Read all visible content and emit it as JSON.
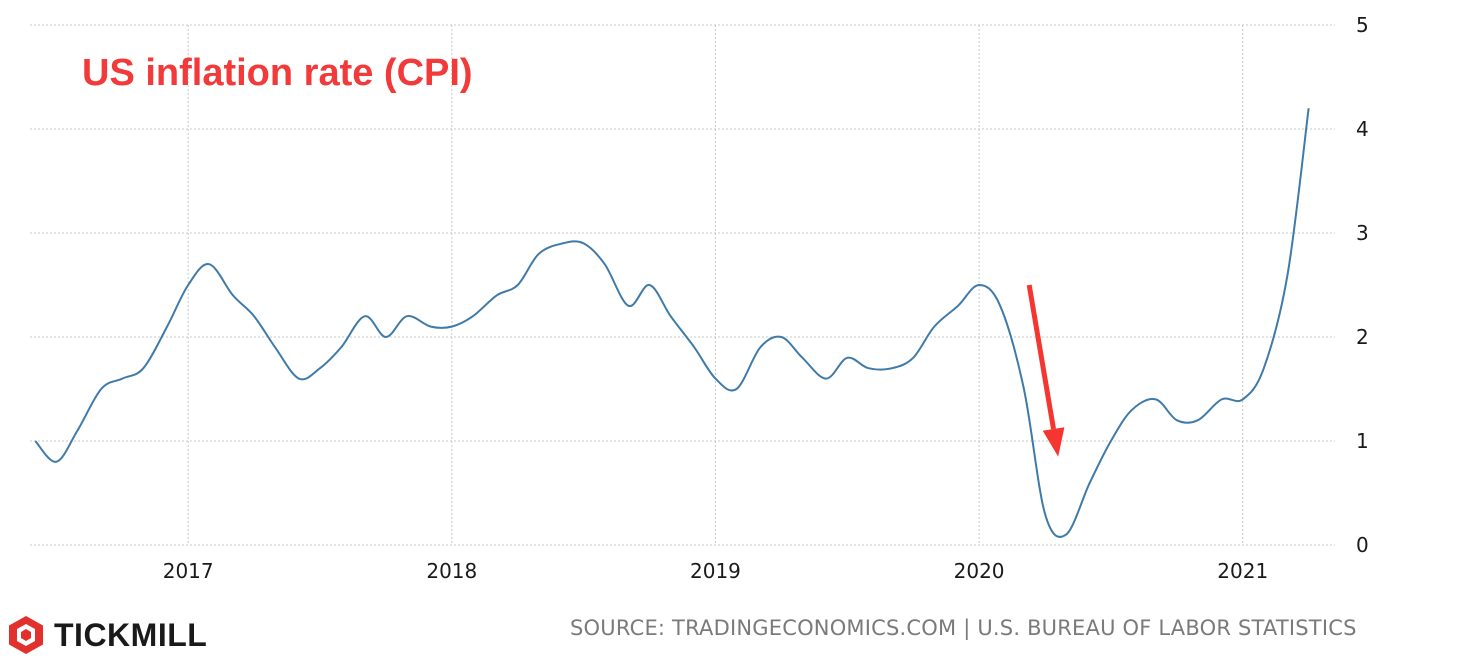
{
  "chart_data": {
    "type": "line",
    "title": "US inflation rate (CPI)",
    "xlabel": "",
    "ylabel": "",
    "x_tick_labels": [
      "2017",
      "2018",
      "2019",
      "2020",
      "2021"
    ],
    "x_tick_values": [
      2017,
      2018,
      2019,
      2020,
      2021
    ],
    "xlim": [
      2016.4,
      2021.35
    ],
    "ylim": [
      0,
      5
    ],
    "y_ticks": [
      0,
      1,
      2,
      3,
      4,
      5
    ],
    "grid": true,
    "series": [
      {
        "name": "US inflation rate (CPI)",
        "color": "#3f7aa8",
        "x": [
          2016.42,
          2016.5,
          2016.58,
          2016.67,
          2016.75,
          2016.83,
          2016.92,
          2017.0,
          2017.08,
          2017.17,
          2017.25,
          2017.33,
          2017.42,
          2017.5,
          2017.58,
          2017.67,
          2017.75,
          2017.83,
          2017.92,
          2018.0,
          2018.08,
          2018.17,
          2018.25,
          2018.33,
          2018.42,
          2018.5,
          2018.58,
          2018.67,
          2018.75,
          2018.83,
          2018.92,
          2019.0,
          2019.08,
          2019.17,
          2019.25,
          2019.33,
          2019.42,
          2019.5,
          2019.58,
          2019.67,
          2019.75,
          2019.83,
          2019.92,
          2020.0,
          2020.08,
          2020.17,
          2020.25,
          2020.33,
          2020.42,
          2020.5,
          2020.58,
          2020.67,
          2020.75,
          2020.83,
          2020.92,
          2021.0,
          2021.08,
          2021.17,
          2021.25
        ],
        "values": [
          1.0,
          0.8,
          1.1,
          1.5,
          1.6,
          1.7,
          2.1,
          2.5,
          2.7,
          2.4,
          2.2,
          1.9,
          1.6,
          1.7,
          1.9,
          2.2,
          2.0,
          2.2,
          2.1,
          2.1,
          2.2,
          2.4,
          2.5,
          2.8,
          2.9,
          2.9,
          2.7,
          2.3,
          2.5,
          2.2,
          1.9,
          1.6,
          1.5,
          1.9,
          2.0,
          1.8,
          1.6,
          1.8,
          1.7,
          1.7,
          1.8,
          2.1,
          2.3,
          2.5,
          2.3,
          1.5,
          0.3,
          0.1,
          0.6,
          1.0,
          1.3,
          1.4,
          1.2,
          1.2,
          1.4,
          1.4,
          1.7,
          2.6,
          4.2
        ]
      }
    ],
    "annotation": {
      "type": "arrow",
      "color": "#f53530",
      "from": {
        "x": 2020.19,
        "y": 2.5
      },
      "to": {
        "x": 2020.3,
        "y": 0.85
      }
    }
  },
  "brand": {
    "name": "TICKMILL",
    "logo_color": "#e2302c"
  },
  "source": "SOURCE: TRADINGECONOMICS.COM | U.S. BUREAU OF LABOR STATISTICS"
}
